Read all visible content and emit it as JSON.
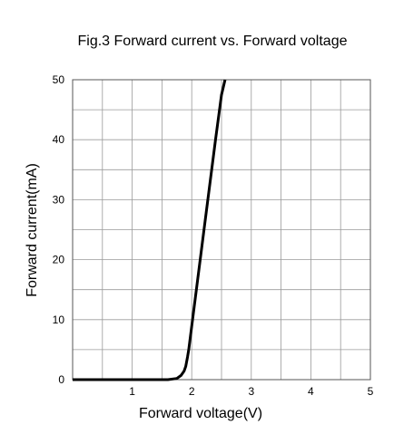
{
  "chart_data": {
    "type": "line",
    "title": "Fig.3 Forward current vs. Forward voltage",
    "xlabel": "Forward voltage(V)",
    "ylabel": "Forward current(mA)",
    "xlim": [
      0,
      5
    ],
    "ylim": [
      0,
      50
    ],
    "x_ticks": [
      1,
      2,
      3,
      4,
      5
    ],
    "x_tick_labels": [
      "1",
      "2",
      "3",
      "4",
      "5"
    ],
    "y_ticks": [
      0,
      10,
      20,
      30,
      40,
      50
    ],
    "y_tick_labels": [
      "0",
      "10",
      "20",
      "30",
      "40",
      "50"
    ],
    "x_minor_step": 0.5,
    "y_minor_step": 5,
    "grid": true,
    "legend": "none",
    "series": [
      {
        "x": [
          0,
          1.0,
          1.6,
          1.75,
          1.82,
          1.87,
          1.9,
          1.93,
          1.95,
          2.2,
          2.4,
          2.5,
          2.56
        ],
        "y": [
          0,
          0,
          0,
          0.2,
          0.7,
          1.4,
          2.2,
          3.8,
          5,
          24.5,
          40,
          47.5,
          50
        ]
      }
    ],
    "colors": {
      "line": "#000000",
      "grid": "#9a9a9a",
      "axis": "#555555"
    }
  }
}
